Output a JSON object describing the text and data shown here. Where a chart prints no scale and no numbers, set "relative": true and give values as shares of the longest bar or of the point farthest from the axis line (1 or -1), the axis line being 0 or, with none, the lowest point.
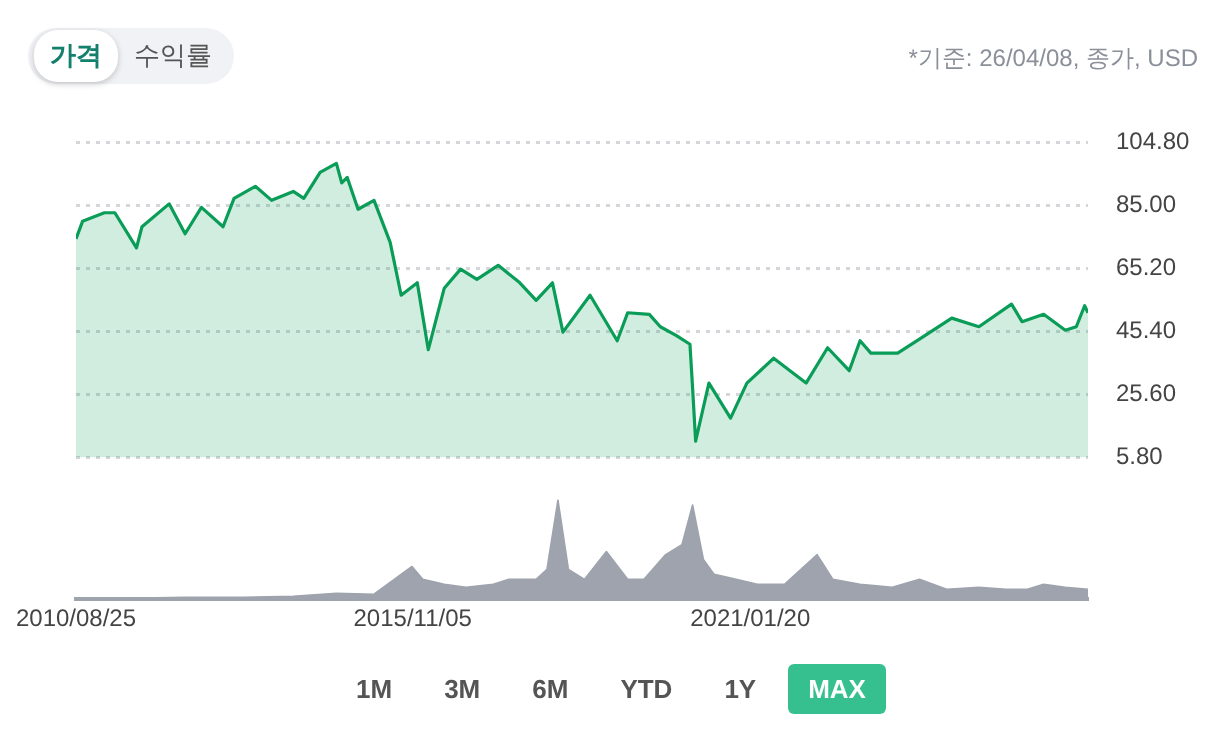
{
  "chart_data": [
    {
      "type": "area",
      "annotations": [
        "가격",
        "수익률",
        "*기준: 26/04/08, 종가, USD"
      ],
      "x": [
        "2010-08-25",
        "2010-10",
        "2011-02",
        "2011-04",
        "2011-08",
        "2011-09",
        "2012-02",
        "2012-05",
        "2012-08",
        "2012-12",
        "2013-02",
        "2013-06",
        "2013-09",
        "2014-01",
        "2014-03",
        "2014-06",
        "2014-09",
        "2014-10",
        "2014-11",
        "2015-01",
        "2015-04",
        "2015-07",
        "2015-09",
        "2015-12",
        "2016-02",
        "2016-05",
        "2016-08",
        "2016-11",
        "2017-03",
        "2017-07",
        "2017-10",
        "2018-01",
        "2018-03",
        "2018-08",
        "2019-01",
        "2019-03",
        "2019-07",
        "2019-09",
        "2019-12",
        "2020-02-15",
        "2020-03-01",
        "2020-03-18",
        "2020-06",
        "2020-10",
        "2021-01",
        "2021-06",
        "2021-09",
        "2021-12",
        "2022-04",
        "2022-08",
        "2022-10",
        "2022-12",
        "2023-05",
        "2023-09",
        "2024-03",
        "2024-08",
        "2025-02",
        "2025-04",
        "2025-08",
        "2025-12",
        "2026-02",
        "2026-03-20",
        "2026-04-08"
      ],
      "series": [
        {
          "color": "#0a9d58",
          "values": [
            74.5,
            80,
            82.7,
            82.7,
            71.7,
            78.3,
            85.5,
            76.1,
            84.4,
            78.3,
            87.2,
            91,
            86.6,
            89.4,
            87.2,
            95.4,
            98.2,
            92.1,
            93.8,
            83.8,
            86.6,
            73.4,
            56.8,
            60.7,
            39.7,
            59,
            65,
            61.8,
            66.2,
            60.7,
            55.2,
            60.7,
            45.2,
            56.8,
            42.5,
            51.3,
            50.8,
            46.9,
            44.1,
            41.4,
            27.6,
            11,
            29.2,
            18.2,
            29.2,
            37,
            33.1,
            29.2,
            40.3,
            33.1,
            42.5,
            38.6,
            38.6,
            43,
            49.6,
            46.9,
            54,
            48.5,
            50.8,
            45.8,
            46.9,
            53.5,
            51.3
          ]
        }
      ],
      "xlim": [
        "2010-08-25",
        "2026-04-08"
      ],
      "ylim": [
        5.8,
        104.8
      ],
      "yticks": [
        {
          "value": 5.8,
          "label": "5.80"
        },
        {
          "value": 25.6,
          "label": "25.60"
        },
        {
          "value": 45.4,
          "label": "45.40"
        },
        {
          "value": 65.2,
          "label": "65.20"
        },
        {
          "value": 85,
          "label": "85.00"
        },
        {
          "value": 104.8,
          "label": "104.80"
        }
      ],
      "tick_labels": "y",
      "grid": "y",
      "legend": false
    },
    {
      "type": "area",
      "relative": true,
      "annotations": [
        "1M",
        "3M",
        "6M",
        "YTD",
        "1Y",
        "MAX"
      ],
      "x": [
        "2010-08-25",
        "2011-06",
        "2012-05",
        "2013-04",
        "2014-01",
        "2014-09",
        "2015-04",
        "2015-11",
        "2016-01",
        "2016-05",
        "2016-09",
        "2017-02",
        "2017-05",
        "2017-10",
        "2017-12",
        "2018-02",
        "2018-04",
        "2018-07",
        "2018-11",
        "2019-03",
        "2019-06",
        "2019-10",
        "2020-01",
        "2020-03",
        "2020-05",
        "2020-07",
        "2020-11",
        "2021-03",
        "2021-08",
        "2022-02",
        "2022-05",
        "2022-10",
        "2023-04",
        "2023-09",
        "2024-02",
        "2024-08",
        "2025-01",
        "2025-05",
        "2025-08",
        "2025-12",
        "2026-04-08"
      ],
      "series": [
        {
          "color": "#9ea3ad",
          "values": [
            0.01,
            0.01,
            0.02,
            0.02,
            0.03,
            0.06,
            0.05,
            0.33,
            0.2,
            0.15,
            0.12,
            0.15,
            0.2,
            0.2,
            0.3,
            1,
            0.3,
            0.2,
            0.48,
            0.2,
            0.2,
            0.45,
            0.55,
            0.95,
            0.4,
            0.25,
            0.2,
            0.15,
            0.15,
            0.45,
            0.2,
            0.15,
            0.12,
            0.2,
            0.1,
            0.12,
            0.1,
            0.1,
            0.15,
            0.12,
            0.1
          ]
        }
      ],
      "xlim": [
        "2010-08-25",
        "2026-04-08"
      ],
      "xticks": [
        {
          "value": "2010-08-25",
          "label": "2010/08/25"
        },
        {
          "value": "2015-11-05",
          "label": "2015/11/05"
        },
        {
          "value": "2021-01-20",
          "label": "2021/01/20"
        }
      ],
      "tick_labels": "x",
      "grid": false,
      "legend": false
    }
  ]
}
